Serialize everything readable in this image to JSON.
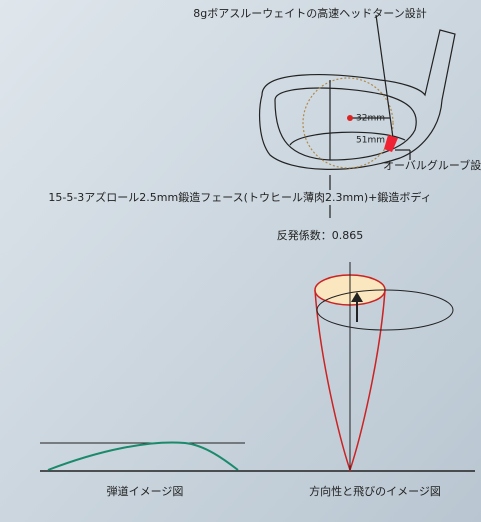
{
  "head": {
    "weight_label": "8gボアスルーウェイトの高速ヘッドターン設計",
    "dim_horizontal": "32mm",
    "dim_vertical": "51mm",
    "groove_label": "オーバルグルーブ設計",
    "face_label": "15-5-3アズロール2.5mm鍛造フェース(トウヒール薄肉2.3mm)+鍛造ボディ",
    "cor_label": "反発係数：0.865"
  },
  "figures": {
    "trajectory_caption": "弾道イメージ図",
    "direction_caption": "方向性と飛びのイメージ図"
  }
}
